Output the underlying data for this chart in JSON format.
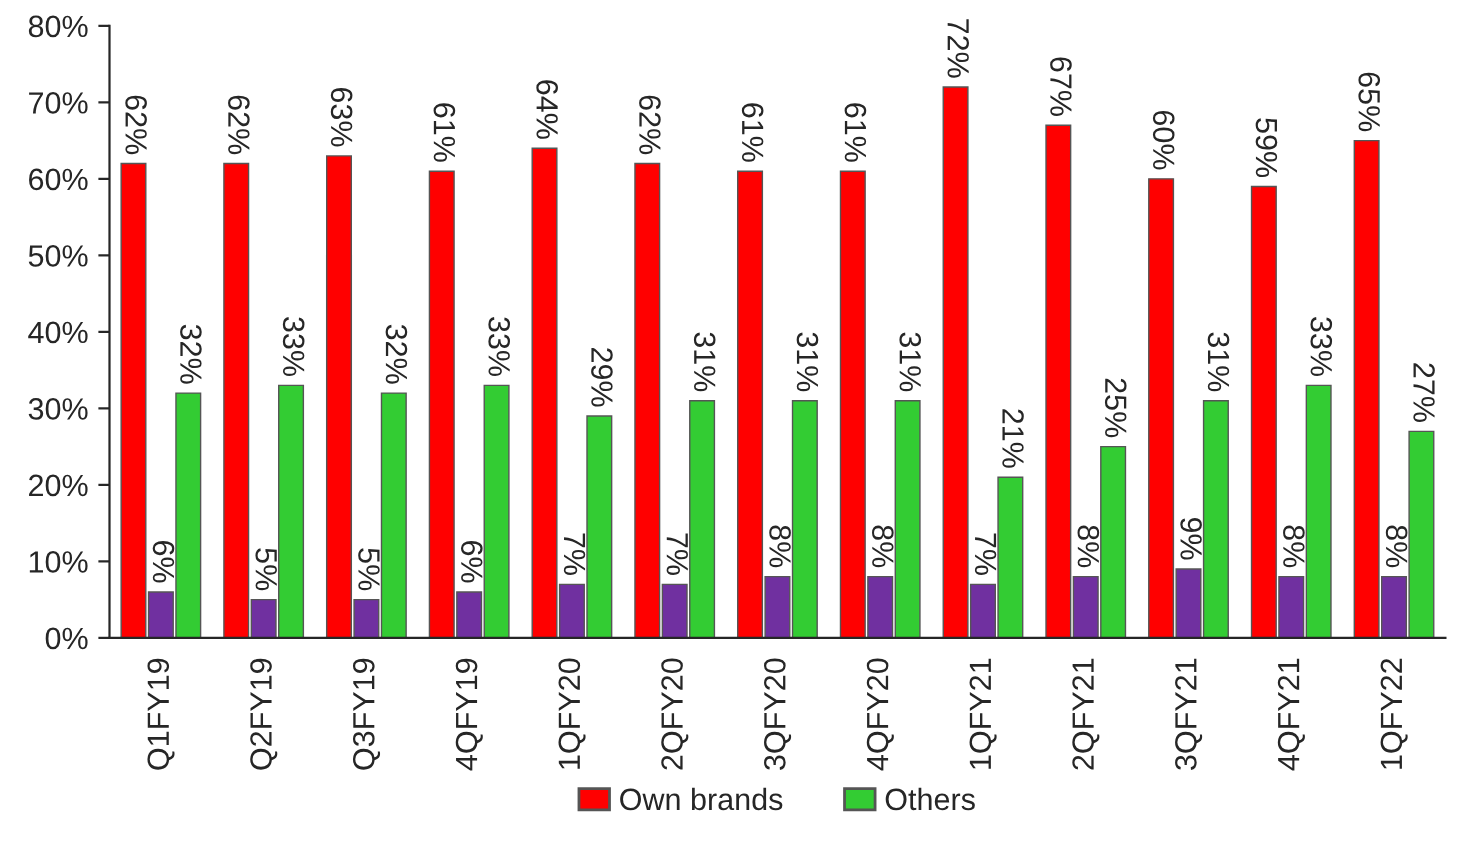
{
  "chart_data": {
    "type": "bar",
    "categories": [
      "Q1FY19",
      "Q2FY19",
      "Q3FY19",
      "4QFY19",
      "1QFY20",
      "2QFY20",
      "3QFY20",
      "4QFY20",
      "1QFY21",
      "2QFY21",
      "3QFY21",
      "4QFY21",
      "1QFY22"
    ],
    "series": [
      {
        "name": "Own brands",
        "color": "#ff0000",
        "values": [
          62,
          62,
          63,
          61,
          64,
          62,
          61,
          61,
          72,
          67,
          60,
          59,
          65
        ],
        "value_labels": [
          "62%",
          "62%",
          "63%",
          "61%",
          "64%",
          "62%",
          "61%",
          "61%",
          "72%",
          "67%",
          "60%",
          "59%",
          "65%"
        ]
      },
      {
        "color": "#7030a0",
        "values": [
          6,
          5,
          5,
          6,
          7,
          7,
          8,
          8,
          7,
          8,
          9,
          8,
          8
        ],
        "value_labels": [
          "6%",
          "5%",
          "5%",
          "6%",
          "7%",
          "7%",
          "8%",
          "8%",
          "7%",
          "8%",
          "9%",
          "8%",
          "8%"
        ]
      },
      {
        "name": "Others",
        "color": "#33cc33",
        "values": [
          32,
          33,
          32,
          33,
          29,
          31,
          31,
          31,
          21,
          25,
          31,
          33,
          27
        ],
        "value_labels": [
          "32%",
          "33%",
          "32%",
          "33%",
          "29%",
          "31%",
          "31%",
          "31%",
          "21%",
          "25%",
          "31%",
          "33%",
          "27%"
        ]
      }
    ],
    "ylim": [
      0,
      80
    ],
    "yticks": [
      {
        "value": 0,
        "label": "0%"
      },
      {
        "value": 10,
        "label": "10%"
      },
      {
        "value": 20,
        "label": "20%"
      },
      {
        "value": 30,
        "label": "30%"
      },
      {
        "value": 40,
        "label": "40%"
      },
      {
        "value": 50,
        "label": "50%"
      },
      {
        "value": 60,
        "label": "60%"
      },
      {
        "value": 70,
        "label": "70%"
      },
      {
        "value": 80,
        "label": "80%"
      }
    ],
    "grid": false,
    "legend": "bottom"
  }
}
